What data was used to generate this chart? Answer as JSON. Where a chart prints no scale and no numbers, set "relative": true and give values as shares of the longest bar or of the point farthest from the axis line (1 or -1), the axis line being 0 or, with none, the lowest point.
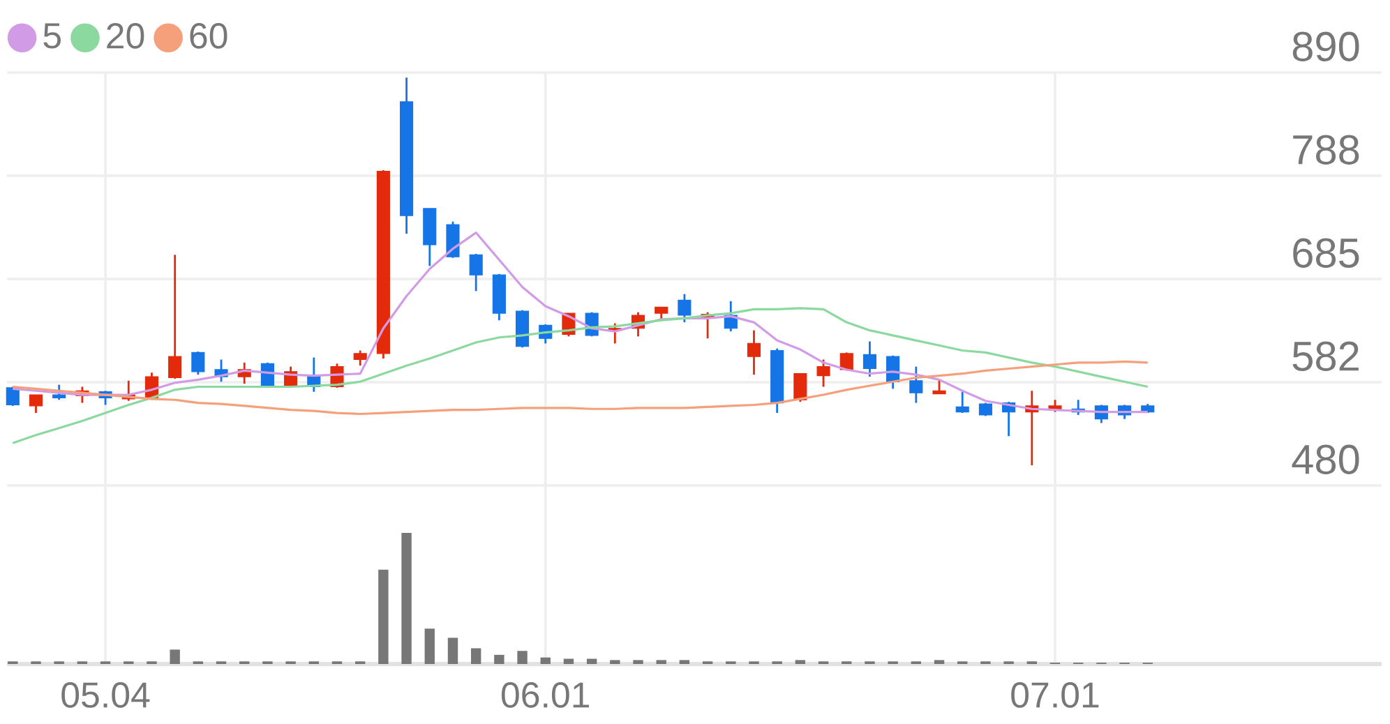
{
  "chart_data": [
    {
      "type": "candlestick",
      "categories": [
        null,
        null,
        null,
        null,
        "05.04",
        null,
        null,
        null,
        null,
        null,
        null,
        null,
        null,
        null,
        null,
        null,
        null,
        null,
        null,
        null,
        null,
        null,
        null,
        "06.01",
        null,
        null,
        null,
        null,
        null,
        null,
        null,
        null,
        null,
        null,
        null,
        null,
        null,
        null,
        null,
        null,
        null,
        null,
        null,
        null,
        null,
        "07.01",
        null,
        null,
        null,
        null
      ],
      "ohlc": [
        [
          577,
          578,
          559,
          560
        ],
        [
          559,
          570,
          552,
          570
        ],
        [
          570,
          580,
          565,
          567
        ],
        [
          569,
          578,
          562,
          574
        ],
        [
          573,
          574,
          560,
          567
        ],
        [
          566,
          584,
          564,
          570
        ],
        [
          566,
          592,
          565,
          588
        ],
        [
          587,
          709,
          586,
          608
        ],
        [
          612,
          613,
          590,
          593
        ],
        [
          595,
          605,
          583,
          588
        ],
        [
          588,
          602,
          581,
          595
        ],
        [
          601,
          602,
          577,
          578
        ],
        [
          579,
          598,
          578,
          593
        ],
        [
          589,
          607,
          573,
          578
        ],
        [
          578,
          601,
          577,
          598
        ],
        [
          605,
          614,
          599,
          611
        ],
        [
          611,
          793,
          606,
          792
        ],
        [
          861,
          885,
          730,
          748
        ],
        [
          755,
          755,
          698,
          719
        ],
        [
          739,
          742,
          706,
          707
        ],
        [
          709,
          710,
          673,
          689
        ],
        [
          689,
          690,
          644,
          651
        ],
        [
          653,
          654,
          617,
          618
        ],
        [
          639,
          640,
          621,
          626
        ],
        [
          630,
          651,
          628,
          651
        ],
        [
          651,
          652,
          628,
          629
        ],
        [
          634,
          641,
          621,
          636
        ],
        [
          636,
          652,
          628,
          649
        ],
        [
          651,
          657,
          645,
          657
        ],
        [
          664,
          670,
          642,
          649
        ],
        [
          646,
          652,
          626,
          650
        ],
        [
          649,
          663,
          633,
          636
        ],
        [
          608,
          634,
          590,
          621
        ],
        [
          614,
          616,
          552,
          562
        ],
        [
          565,
          591,
          563,
          591
        ],
        [
          589,
          605,
          578,
          598
        ],
        [
          595,
          612,
          594,
          611
        ],
        [
          610,
          623,
          588,
          596
        ],
        [
          608,
          609,
          576,
          583
        ],
        [
          584,
          598,
          562,
          572
        ],
        [
          571,
          584,
          571,
          574
        ],
        [
          558,
          573,
          552,
          553
        ],
        [
          561,
          562,
          549,
          550
        ],
        [
          562,
          563,
          529,
          553
        ],
        [
          553,
          574,
          500,
          559
        ],
        [
          555,
          565,
          553,
          559
        ],
        [
          556,
          565,
          550,
          553
        ],
        [
          559,
          560,
          542,
          546
        ],
        [
          559,
          560,
          546,
          550
        ],
        [
          559,
          561,
          552,
          553
        ]
      ],
      "colors": [
        "#1574e6",
        "#e32b0b",
        "#1574e6",
        "#e32b0b",
        "#1574e6",
        "#e32b0b",
        "#e32b0b",
        "#e32b0b",
        "#1574e6",
        "#1574e6",
        "#e32b0b",
        "#1574e6",
        "#e32b0b",
        "#1574e6",
        "#e32b0b",
        "#e32b0b",
        "#e32b0b",
        "#1574e6",
        "#1574e6",
        "#1574e6",
        "#1574e6",
        "#1574e6",
        "#1574e6",
        "#1574e6",
        "#e32b0b",
        "#1574e6",
        "#e32b0b",
        "#e32b0b",
        "#e32b0b",
        "#1574e6",
        "#e32b0b",
        "#1574e6",
        "#e32b0b",
        "#1574e6",
        "#e32b0b",
        "#e32b0b",
        "#e32b0b",
        "#1574e6",
        "#1574e6",
        "#1574e6",
        "#e32b0b",
        "#1574e6",
        "#1574e6",
        "#1574e6",
        "#e32b0b",
        "#e32b0b",
        "#1574e6",
        "#1574e6",
        "#1574e6",
        "#1574e6"
      ],
      "series": [
        {
          "type": "line",
          "name": "5",
          "color": "#d29be6",
          "values": [
            576,
            574,
            572,
            570,
            570,
            570,
            575,
            582,
            585,
            589,
            594,
            592,
            590,
            589,
            590,
            591,
            636,
            668,
            695,
            715,
            731,
            704,
            677,
            658,
            648,
            636,
            633,
            639,
            645,
            646,
            646,
            648,
            642,
            624,
            615,
            602,
            595,
            591,
            593,
            590,
            585,
            574,
            564,
            560,
            556,
            555,
            554,
            553,
            553,
            553
          ]
        },
        {
          "type": "line",
          "name": "20",
          "color": "#8cd9a0",
          "values": [
            522,
            530,
            537,
            544,
            552,
            560,
            567,
            575,
            578,
            578,
            578,
            578,
            578,
            579,
            580,
            583,
            591,
            599,
            606,
            614,
            622,
            627,
            629,
            632,
            634,
            637,
            638,
            641,
            644,
            646,
            649,
            651,
            655,
            655,
            656,
            655,
            642,
            634,
            629,
            624,
            619,
            614,
            612,
            607,
            602,
            598,
            593,
            588,
            583,
            578
          ]
        },
        {
          "type": "line",
          "name": "60",
          "color": "#f5a07a",
          "values": [
            578,
            576,
            574,
            572,
            570,
            568,
            566,
            565,
            562,
            561,
            559,
            557,
            555,
            554,
            552,
            551,
            552,
            553,
            554,
            555,
            555,
            556,
            557,
            557,
            557,
            556,
            556,
            557,
            557,
            557,
            558,
            559,
            560,
            562,
            566,
            570,
            575,
            579,
            583,
            587,
            589,
            591,
            594,
            596,
            598,
            600,
            602,
            602,
            603,
            602
          ]
        }
      ],
      "ylim": [
        480,
        890
      ],
      "yticks": [
        890,
        {
          "value": 787.5,
          "label": "788"
        },
        685,
        {
          "value": 582.5,
          "label": "582"
        },
        480
      ],
      "grid": true,
      "legend": "top left",
      "tick_labels": "y"
    },
    {
      "type": "bar",
      "relative": true,
      "color": "#777777",
      "categories": [
        null,
        null,
        null,
        null,
        "05.04",
        null,
        null,
        null,
        null,
        null,
        null,
        null,
        null,
        null,
        null,
        null,
        null,
        null,
        null,
        null,
        null,
        null,
        null,
        "06.01",
        null,
        null,
        null,
        null,
        null,
        null,
        null,
        null,
        null,
        null,
        null,
        null,
        null,
        null,
        null,
        null,
        null,
        null,
        null,
        null,
        null,
        "07.01",
        null,
        null,
        null,
        null
      ],
      "values": [
        0.02,
        0.02,
        0.02,
        0.02,
        0.02,
        0.02,
        0.02,
        0.11,
        0.02,
        0.02,
        0.02,
        0.02,
        0.02,
        0.02,
        0.02,
        0.02,
        0.72,
        1,
        0.27,
        0.2,
        0.12,
        0.07,
        0.1,
        0.05,
        0.04,
        0.04,
        0.03,
        0.03,
        0.03,
        0.03,
        0.02,
        0.02,
        0.02,
        0.02,
        0.03,
        0.02,
        0.02,
        0.02,
        0.02,
        0.02,
        0.03,
        0.02,
        0.02,
        0.02,
        0.02,
        0.01,
        0.01,
        0.01,
        0.01,
        0.01
      ],
      "grid": "x",
      "tick_labels": "x"
    }
  ]
}
